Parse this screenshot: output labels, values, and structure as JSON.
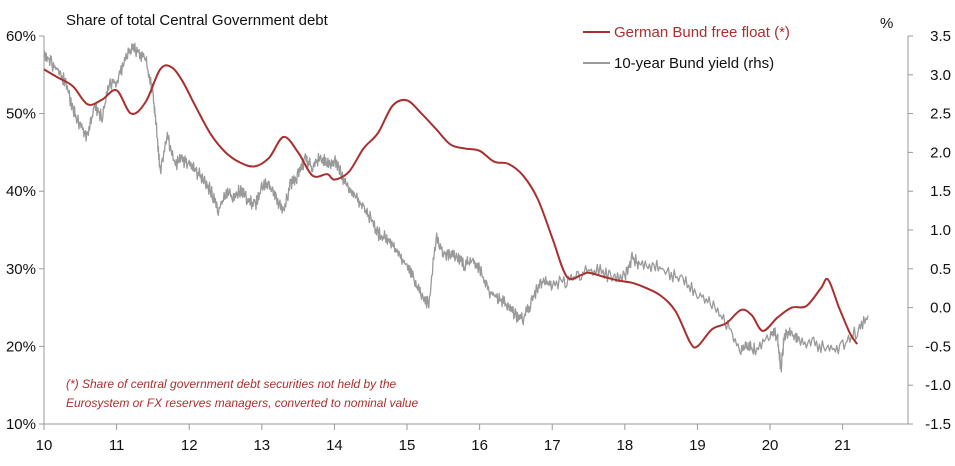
{
  "chart_data": {
    "type": "line",
    "title": "Share of total Central Government debt",
    "right_unit": "%",
    "footnote": [
      "(*) Share of central government debt securities not held by the",
      "Eurosystem or FX reserves managers, converted to nominal value"
    ],
    "x_ticks": [
      "10",
      "11",
      "12",
      "13",
      "14",
      "15",
      "16",
      "17",
      "18",
      "19",
      "20",
      "21"
    ],
    "xlim": [
      2010,
      2021.9
    ],
    "y_left": {
      "ticks": [
        "10%",
        "20%",
        "30%",
        "40%",
        "50%",
        "60%"
      ],
      "values": [
        10,
        20,
        30,
        40,
        50,
        60
      ],
      "lim": [
        10,
        60
      ]
    },
    "y_right": {
      "ticks": [
        "-1.5",
        "-1.0",
        "-0.5",
        "0.0",
        "0.5",
        "1.0",
        "1.5",
        "2.0",
        "2.5",
        "3.0",
        "3.5"
      ],
      "values": [
        -1.5,
        -1.0,
        -0.5,
        0.0,
        0.5,
        1.0,
        1.5,
        2.0,
        2.5,
        3.0,
        3.5
      ],
      "lim": [
        -1.5,
        3.5
      ]
    },
    "colors": {
      "free_float": "#a8302f",
      "yield": "#9a9a9a",
      "axis": "#999999",
      "note": "#a8302f"
    },
    "legend_position": "top-right",
    "series": [
      {
        "name": "German Bund free float (*)",
        "axis": "left",
        "x": [
          2010.0,
          2010.2,
          2010.4,
          2010.6,
          2010.8,
          2011.0,
          2011.2,
          2011.4,
          2011.6,
          2011.75,
          2011.9,
          2012.1,
          2012.3,
          2012.5,
          2012.7,
          2012.9,
          2013.1,
          2013.3,
          2013.5,
          2013.7,
          2013.9,
          2014.0,
          2014.2,
          2014.4,
          2014.6,
          2014.8,
          2015.0,
          2015.2,
          2015.4,
          2015.6,
          2015.8,
          2016.0,
          2016.2,
          2016.4,
          2016.6,
          2016.8,
          2017.0,
          2017.2,
          2017.4,
          2017.5,
          2017.7,
          2017.9,
          2018.1,
          2018.3,
          2018.5,
          2018.7,
          2018.9,
          2019.0,
          2019.2,
          2019.4,
          2019.6,
          2019.75,
          2019.9,
          2020.1,
          2020.3,
          2020.5,
          2020.7,
          2020.8,
          2020.95,
          2021.1,
          2021.2
        ],
        "values": [
          55.7,
          54.6,
          53.5,
          51.2,
          51.8,
          53.0,
          50.0,
          51.5,
          55.7,
          56.0,
          54.3,
          50.7,
          47.3,
          45.0,
          43.7,
          43.2,
          44.3,
          47.0,
          45.0,
          42.0,
          42.2,
          41.5,
          42.5,
          45.5,
          47.5,
          51.0,
          51.7,
          50.0,
          48.0,
          46.0,
          45.5,
          45.2,
          43.8,
          43.5,
          42.0,
          39.0,
          34.0,
          29.0,
          29.2,
          29.5,
          29.0,
          28.5,
          28.2,
          27.5,
          26.5,
          24.5,
          20.5,
          20.0,
          22.2,
          23.0,
          24.7,
          24.0,
          22.0,
          23.7,
          25.0,
          25.2,
          27.5,
          28.6,
          25.0,
          21.7,
          20.3
        ]
      },
      {
        "name": "10-year Bund yield (rhs)",
        "axis": "right",
        "x": [
          2010.0,
          2010.1,
          2010.2,
          2010.3,
          2010.4,
          2010.5,
          2010.6,
          2010.7,
          2010.8,
          2010.9,
          2011.0,
          2011.1,
          2011.2,
          2011.3,
          2011.4,
          2011.5,
          2011.55,
          2011.6,
          2011.7,
          2011.8,
          2011.9,
          2012.0,
          2012.1,
          2012.2,
          2012.3,
          2012.4,
          2012.5,
          2012.6,
          2012.7,
          2012.8,
          2012.9,
          2013.0,
          2013.1,
          2013.2,
          2013.3,
          2013.4,
          2013.5,
          2013.6,
          2013.7,
          2013.8,
          2013.9,
          2014.0,
          2014.1,
          2014.2,
          2014.3,
          2014.4,
          2014.5,
          2014.6,
          2014.7,
          2014.8,
          2014.9,
          2015.0,
          2015.1,
          2015.2,
          2015.3,
          2015.4,
          2015.5,
          2015.6,
          2015.7,
          2015.8,
          2015.9,
          2016.0,
          2016.1,
          2016.2,
          2016.3,
          2016.4,
          2016.5,
          2016.6,
          2016.7,
          2016.8,
          2016.9,
          2017.0,
          2017.2,
          2017.4,
          2017.6,
          2017.8,
          2018.0,
          2018.1,
          2018.2,
          2018.4,
          2018.6,
          2018.8,
          2019.0,
          2019.2,
          2019.4,
          2019.6,
          2019.7,
          2019.8,
          2020.0,
          2020.1,
          2020.15,
          2020.2,
          2020.3,
          2020.4,
          2020.6,
          2020.8,
          2021.0,
          2021.2,
          2021.35
        ],
        "values": [
          3.3,
          3.15,
          3.05,
          2.9,
          2.55,
          2.35,
          2.2,
          2.6,
          2.45,
          2.9,
          2.9,
          3.15,
          3.35,
          3.3,
          3.2,
          2.75,
          2.3,
          1.75,
          2.2,
          1.85,
          1.9,
          1.85,
          1.75,
          1.65,
          1.5,
          1.25,
          1.45,
          1.45,
          1.5,
          1.4,
          1.3,
          1.55,
          1.6,
          1.4,
          1.25,
          1.6,
          1.7,
          1.9,
          1.8,
          1.95,
          1.85,
          1.9,
          1.7,
          1.55,
          1.45,
          1.25,
          1.15,
          0.95,
          0.9,
          0.8,
          0.65,
          0.55,
          0.35,
          0.15,
          0.05,
          0.9,
          0.7,
          0.7,
          0.65,
          0.55,
          0.6,
          0.5,
          0.25,
          0.15,
          0.1,
          0.0,
          -0.1,
          -0.15,
          0.05,
          0.25,
          0.35,
          0.3,
          0.35,
          0.45,
          0.5,
          0.4,
          0.4,
          0.65,
          0.55,
          0.55,
          0.45,
          0.35,
          0.2,
          0.05,
          -0.2,
          -0.55,
          -0.5,
          -0.55,
          -0.35,
          -0.35,
          -0.8,
          -0.35,
          -0.35,
          -0.45,
          -0.45,
          -0.55,
          -0.5,
          -0.3,
          -0.1
        ]
      }
    ]
  }
}
